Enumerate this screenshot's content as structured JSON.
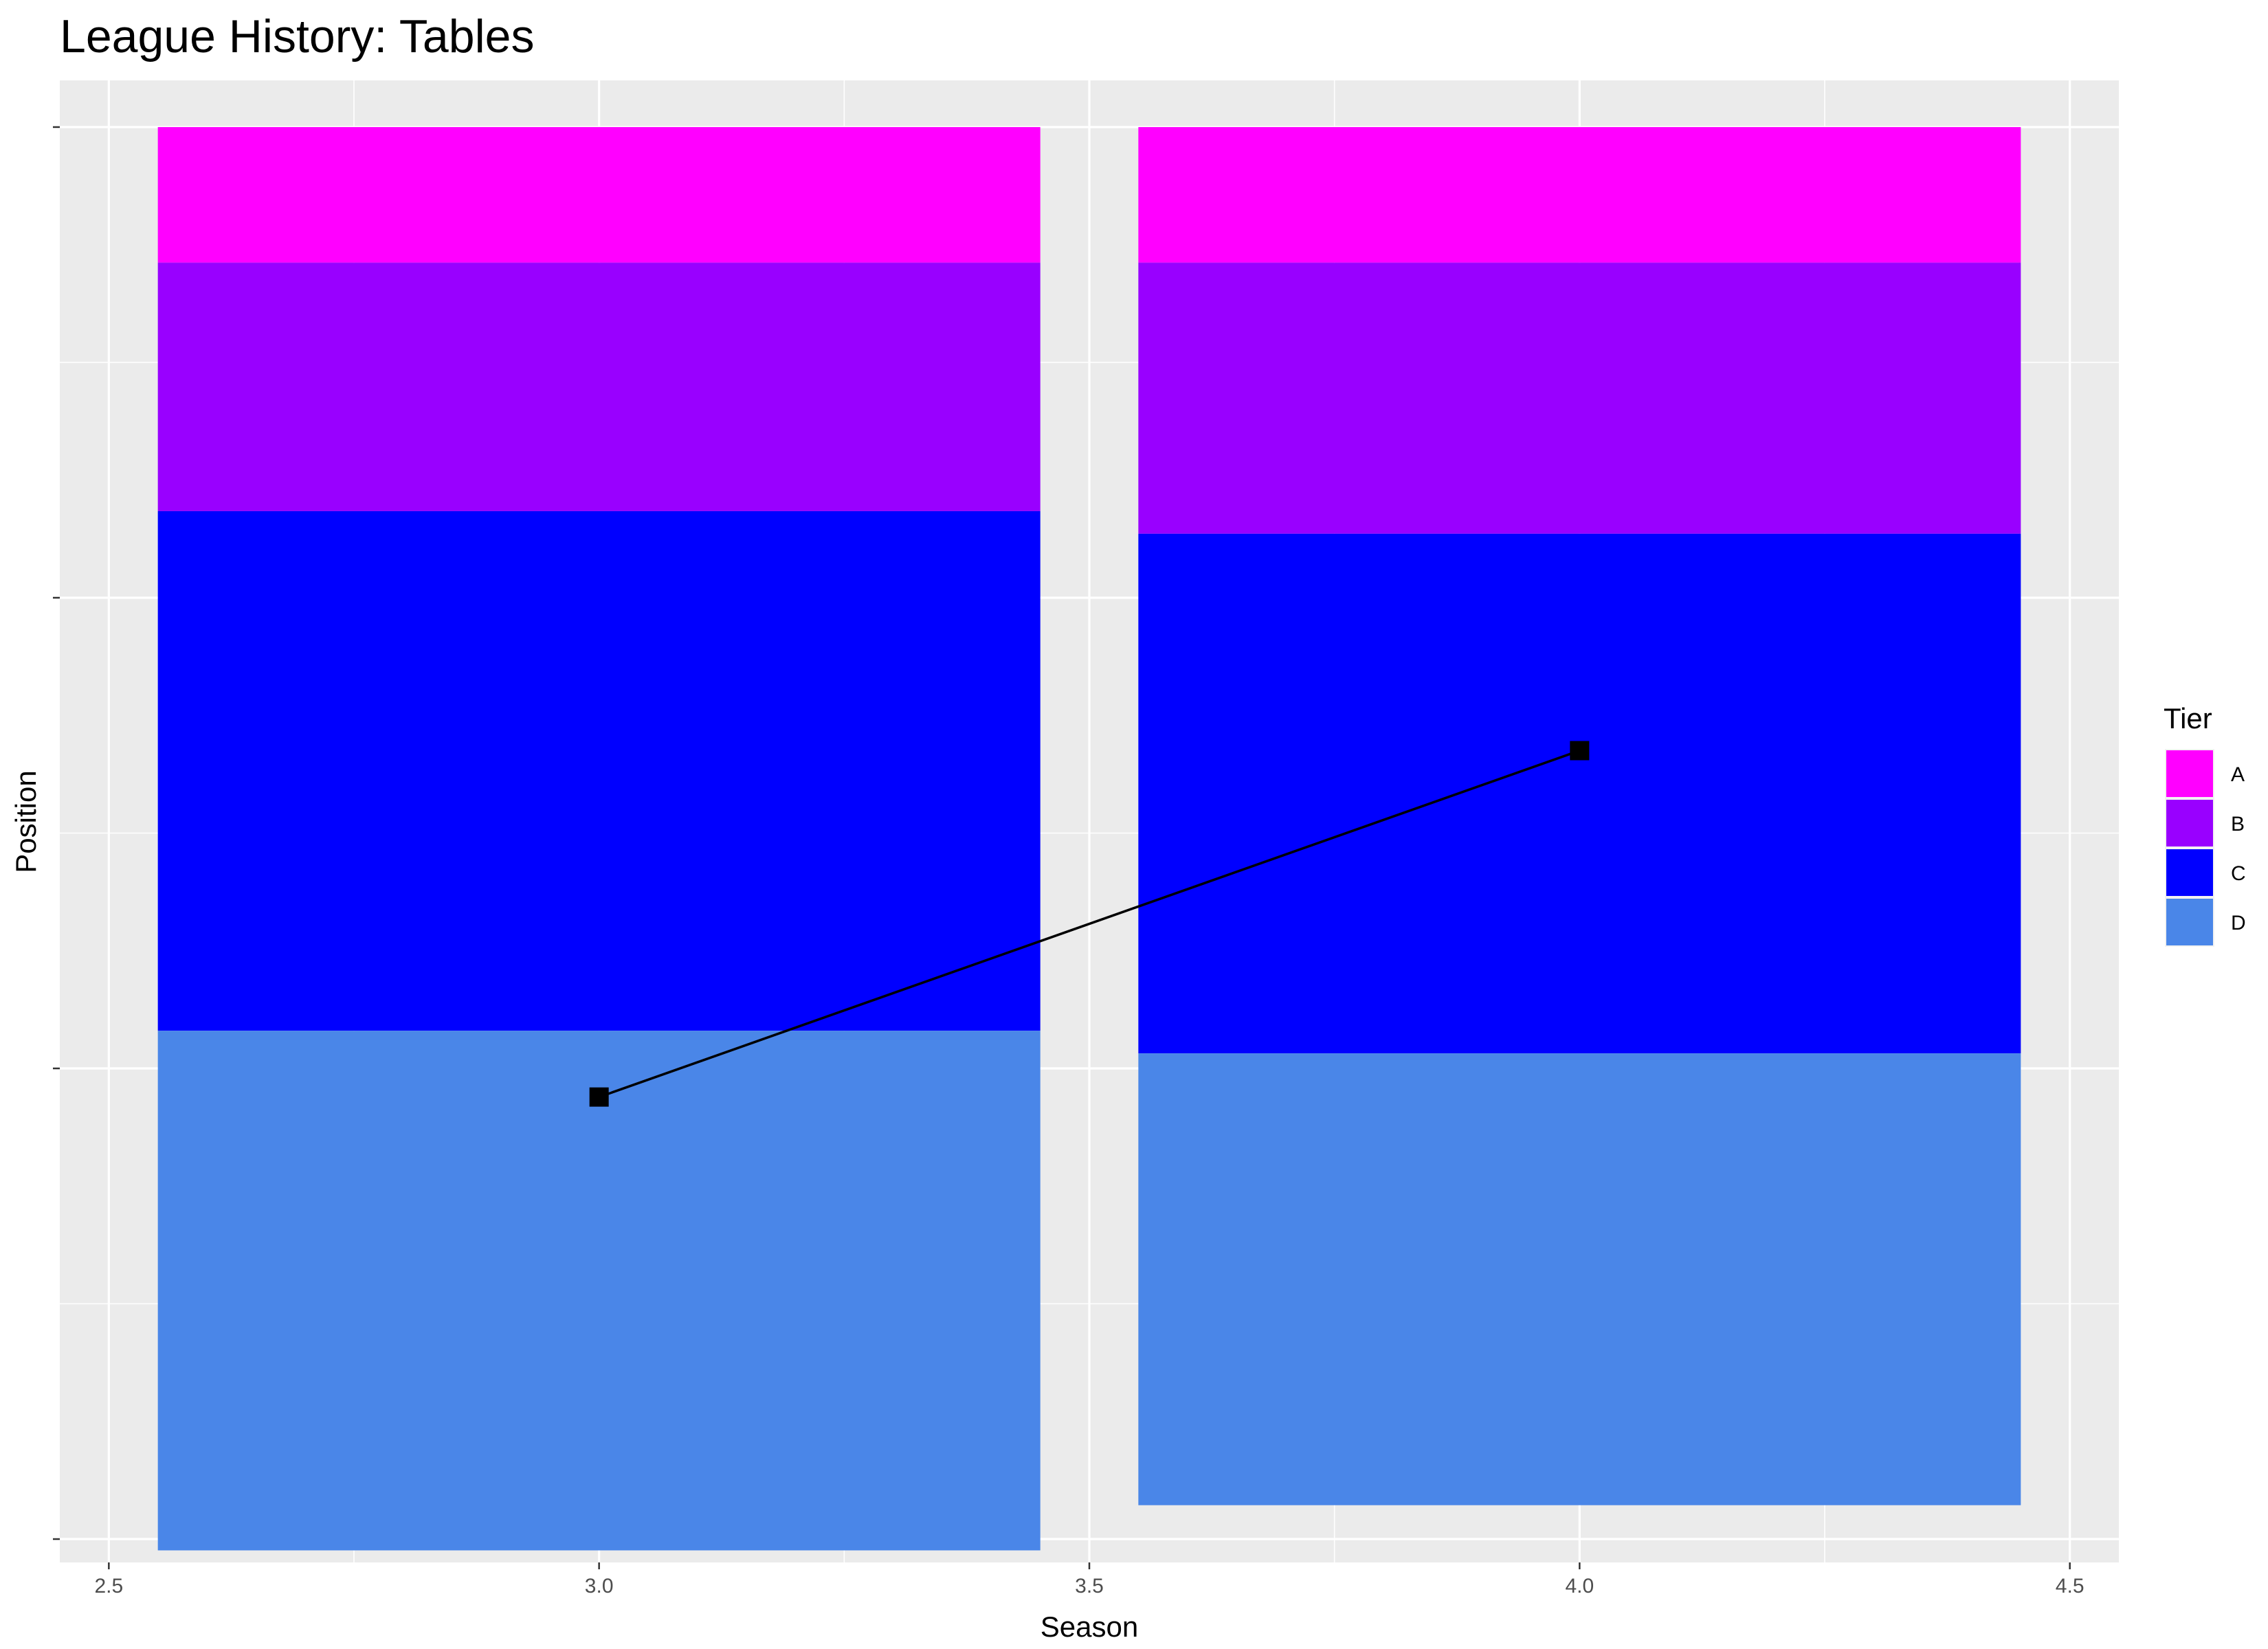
{
  "chart_data": {
    "type": "bar",
    "title": "League History: Tables",
    "xlabel": "Season",
    "ylabel": "Position",
    "xlim": [
      2.45,
      4.55
    ],
    "x_ticks": [
      "2.5",
      "3.0",
      "3.5",
      "4.0",
      "4.5"
    ],
    "ylim": [
      -95.3,
      3.1
    ],
    "y_ticks_labeled": false,
    "grid": true,
    "legend": {
      "title": "Tier",
      "position": "right"
    },
    "tiers": [
      {
        "name": "A",
        "color": "#FF00FF"
      },
      {
        "name": "B",
        "color": "#9900FF"
      },
      {
        "name": "C",
        "color": "#0000FF"
      },
      {
        "name": "D",
        "color": "#4A86E8"
      }
    ],
    "categories": [
      "3",
      "4"
    ],
    "bar_width": 0.9,
    "stacks": [
      {
        "season": 3,
        "segments": [
          {
            "tier": "A",
            "from": -9,
            "to": 0
          },
          {
            "tier": "B",
            "from": -25.5,
            "to": -9
          },
          {
            "tier": "C",
            "from": -60,
            "to": -25.5
          },
          {
            "tier": "D",
            "from": -94.5,
            "to": -60
          }
        ]
      },
      {
        "season": 4,
        "segments": [
          {
            "tier": "A",
            "from": -9,
            "to": 0
          },
          {
            "tier": "B",
            "from": -27,
            "to": -9
          },
          {
            "tier": "C",
            "from": -61.5,
            "to": -27
          },
          {
            "tier": "D",
            "from": -91.5,
            "to": -61.5
          }
        ]
      }
    ],
    "series": [
      {
        "type": "line",
        "marker": "square",
        "color": "#000000",
        "points": [
          {
            "x": 3,
            "y": -64.4
          },
          {
            "x": 4,
            "y": -41.4
          }
        ]
      }
    ]
  }
}
